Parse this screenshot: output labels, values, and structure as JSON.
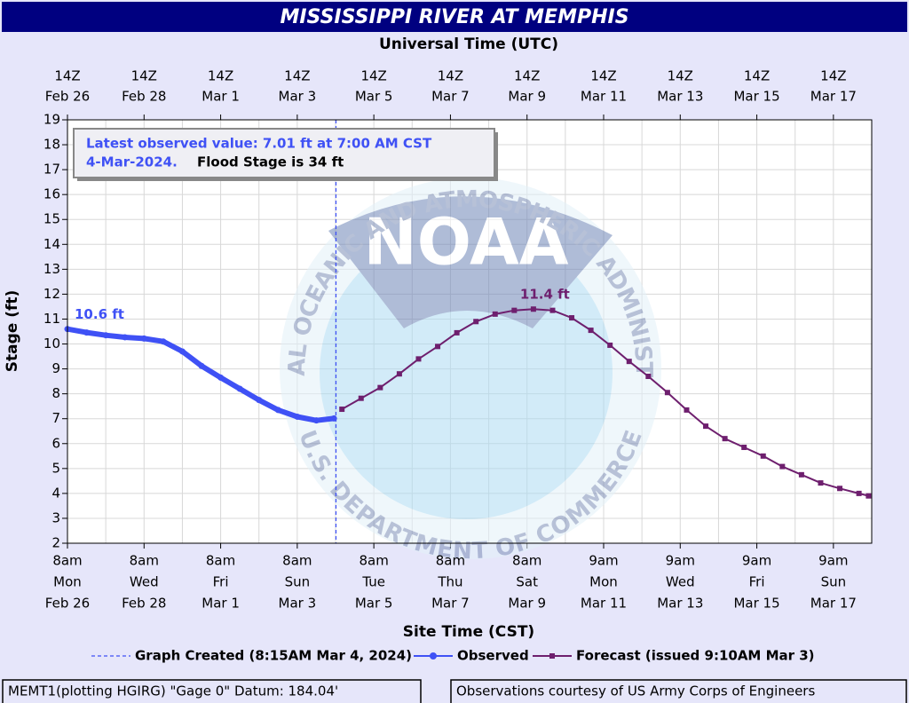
{
  "chart_data": {
    "type": "line",
    "title": "MISSISSIPPI RIVER AT MEMPHIS",
    "x2_label": "Universal Time (UTC)",
    "x_label": "Site Time (CST)",
    "y_label": "Stage (ft)",
    "xlim": [
      "2024-02-26T14:00Z",
      "2024-03-18T14:00Z"
    ],
    "ylim": [
      2,
      19
    ],
    "yticks": [
      2,
      3,
      4,
      5,
      6,
      7,
      8,
      9,
      10,
      11,
      12,
      13,
      14,
      15,
      16,
      17,
      18,
      19
    ],
    "grid": true,
    "xticks": [
      {
        "value": "2024-02-26T14:00Z",
        "label": [
          "8am",
          "Mon",
          "Feb 26"
        ]
      },
      {
        "value": "2024-02-28T14:00Z",
        "label": [
          "8am",
          "Wed",
          "Feb 28"
        ]
      },
      {
        "value": "2024-03-01T14:00Z",
        "label": [
          "8am",
          "Fri",
          "Mar 1"
        ]
      },
      {
        "value": "2024-03-03T14:00Z",
        "label": [
          "8am",
          "Sun",
          "Mar 3"
        ]
      },
      {
        "value": "2024-03-05T14:00Z",
        "label": [
          "8am",
          "Tue",
          "Mar 5"
        ]
      },
      {
        "value": "2024-03-07T14:00Z",
        "label": [
          "8am",
          "Thu",
          "Mar 7"
        ]
      },
      {
        "value": "2024-03-09T14:00Z",
        "label": [
          "8am",
          "Sat",
          "Mar 9"
        ]
      },
      {
        "value": "2024-03-11T14:00Z",
        "label": [
          "9am",
          "Mon",
          "Mar 11"
        ]
      },
      {
        "value": "2024-03-13T14:00Z",
        "label": [
          "9am",
          "Wed",
          "Mar 13"
        ]
      },
      {
        "value": "2024-03-15T14:00Z",
        "label": [
          "9am",
          "Fri",
          "Mar 15"
        ]
      },
      {
        "value": "2024-03-17T14:00Z",
        "label": [
          "9am",
          "Sun",
          "Mar 17"
        ]
      }
    ],
    "x2ticks": [
      {
        "value": "2024-02-26T14:00Z",
        "label": [
          "14Z",
          "Feb 26"
        ]
      },
      {
        "value": "2024-02-28T14:00Z",
        "label": [
          "14Z",
          "Feb 28"
        ]
      },
      {
        "value": "2024-03-01T14:00Z",
        "label": [
          "14Z",
          "Mar  1"
        ]
      },
      {
        "value": "2024-03-03T14:00Z",
        "label": [
          "14Z",
          "Mar  3"
        ]
      },
      {
        "value": "2024-03-05T14:00Z",
        "label": [
          "14Z",
          "Mar  5"
        ]
      },
      {
        "value": "2024-03-07T14:00Z",
        "label": [
          "14Z",
          "Mar  7"
        ]
      },
      {
        "value": "2024-03-09T14:00Z",
        "label": [
          "14Z",
          "Mar  9"
        ]
      },
      {
        "value": "2024-03-11T14:00Z",
        "label": [
          "14Z",
          "Mar 11"
        ]
      },
      {
        "value": "2024-03-13T14:00Z",
        "label": [
          "14Z",
          "Mar 13"
        ]
      },
      {
        "value": "2024-03-15T14:00Z",
        "label": [
          "14Z",
          "Mar 15"
        ]
      },
      {
        "value": "2024-03-17T14:00Z",
        "label": [
          "14Z",
          "Mar 17"
        ]
      }
    ],
    "series": [
      {
        "name": "Observed",
        "color": "#3f51f5",
        "marker": "circle",
        "x": [
          "2024-02-26T14:00Z",
          "2024-02-27T02:00Z",
          "2024-02-27T14:00Z",
          "2024-02-28T02:00Z",
          "2024-02-28T14:00Z",
          "2024-02-29T02:00Z",
          "2024-02-29T14:00Z",
          "2024-03-01T02:00Z",
          "2024-03-01T14:00Z",
          "2024-03-02T02:00Z",
          "2024-03-02T14:00Z",
          "2024-03-03T02:00Z",
          "2024-03-03T14:00Z",
          "2024-03-04T02:00Z",
          "2024-03-04T13:00Z"
        ],
        "values": [
          10.6,
          10.46,
          10.35,
          10.27,
          10.22,
          10.1,
          9.7,
          9.12,
          8.65,
          8.2,
          7.75,
          7.35,
          7.08,
          6.93,
          7.01
        ]
      },
      {
        "name": "Forecast (issued 9:10AM Mar 3)",
        "color": "#6e1f6e",
        "marker": "square",
        "x": [
          "2024-03-04T18:00Z",
          "2024-03-05T06:00Z",
          "2024-03-05T18:00Z",
          "2024-03-06T06:00Z",
          "2024-03-06T18:00Z",
          "2024-03-07T06:00Z",
          "2024-03-07T18:00Z",
          "2024-03-08T06:00Z",
          "2024-03-08T18:00Z",
          "2024-03-09T06:00Z",
          "2024-03-09T18:00Z",
          "2024-03-10T06:00Z",
          "2024-03-10T18:00Z",
          "2024-03-11T06:00Z",
          "2024-03-11T18:00Z",
          "2024-03-12T06:00Z",
          "2024-03-12T18:00Z",
          "2024-03-13T06:00Z",
          "2024-03-13T18:00Z",
          "2024-03-14T06:00Z",
          "2024-03-14T18:00Z",
          "2024-03-15T06:00Z",
          "2024-03-15T18:00Z",
          "2024-03-16T06:00Z",
          "2024-03-16T18:00Z",
          "2024-03-17T06:00Z",
          "2024-03-17T18:00Z",
          "2024-03-18T06:00Z",
          "2024-03-18T12:00Z"
        ],
        "values": [
          7.38,
          7.82,
          8.25,
          8.8,
          9.4,
          9.9,
          10.45,
          10.9,
          11.2,
          11.35,
          11.4,
          11.35,
          11.05,
          10.55,
          9.95,
          9.3,
          8.7,
          8.05,
          7.35,
          6.7,
          6.2,
          5.85,
          5.5,
          5.08,
          4.75,
          4.42,
          4.2,
          4.0,
          3.9
        ]
      }
    ],
    "annotations": [
      {
        "text": "10.6 ft",
        "x": "2024-02-26T14:00Z",
        "y": 10.6,
        "color": "#3f51f5"
      },
      {
        "text": "11.4 ft",
        "x": "2024-03-09T18:00Z",
        "y": 11.4,
        "color": "#6e1f6e"
      }
    ],
    "graph_created": {
      "label": "Graph Created (8:15AM Mar 4, 2024)",
      "x": "2024-03-04T14:15Z",
      "color": "#3f51f5"
    },
    "info_box": {
      "observed": "Latest observed value: 7.01 ft at 7:00 AM CST",
      "observed_date": "4-Mar-2024.",
      "flood_stage": "Flood Stage is 34 ft"
    },
    "watermark": {
      "text": "NOAA",
      "ring": "NATIONAL OCEANIC AND ATMOSPHERIC ADMINISTRATION",
      "bottom": "U.S. DEPARTMENT OF COMMERCE"
    },
    "footer": {
      "left": "MEMT1(plotting HGIRG) \"Gage 0\" Datum: 184.04'",
      "right": "Observations courtesy of US Army Corps of Engineers"
    }
  }
}
